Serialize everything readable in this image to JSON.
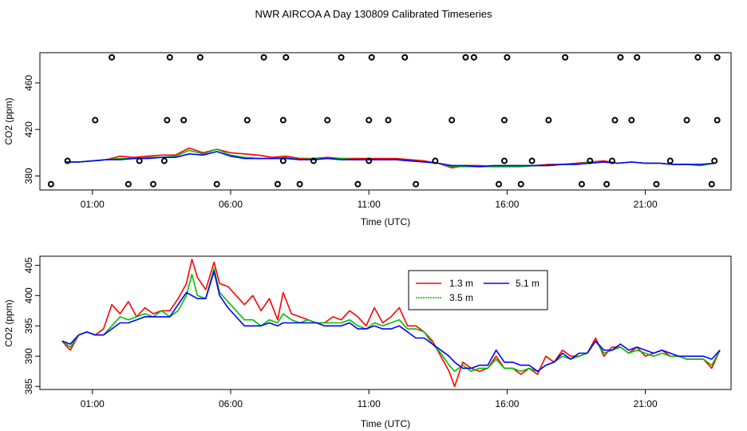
{
  "chart_data": [
    {
      "type": "line",
      "title": "NWR AIRCOA A  Day 130809  Calibrated Timeseries",
      "xlabel": "Time (UTC)",
      "ylabel": "CO2 (ppm)",
      "xlim": [
        -0.9,
        24.1
      ],
      "ylim": [
        368,
        486
      ],
      "x_ticks": [
        1,
        6,
        11,
        16,
        21
      ],
      "x_tick_labels": [
        "01:00",
        "06:00",
        "11:00",
        "16:00",
        "21:00"
      ],
      "y_ticks": [
        380,
        420,
        460
      ],
      "y_tick_labels": [
        "380",
        "420",
        "460"
      ],
      "series": [
        {
          "name": "1.3 m",
          "color": "#ff0000",
          "x": [
            0,
            0.5,
            1,
            1.5,
            2,
            2.5,
            3,
            3.5,
            4,
            4.5,
            5,
            5.5,
            6,
            6.5,
            7,
            7.5,
            8,
            8.5,
            9,
            9.5,
            10,
            10.5,
            11,
            11.5,
            12,
            12.5,
            13,
            13.5,
            14,
            14.5,
            15,
            15.5,
            16,
            16.5,
            17,
            17.5,
            18,
            18.5,
            19,
            19.5,
            20,
            20.5,
            21,
            21.5,
            22,
            22.5,
            23,
            23.5
          ],
          "y": [
            392,
            392,
            393,
            394,
            397,
            396,
            397,
            398,
            398,
            404,
            400,
            403,
            400,
            399,
            398,
            396,
            397,
            395,
            395,
            396,
            395,
            395,
            395,
            395,
            395,
            394,
            393,
            391,
            387,
            389,
            389,
            388,
            388,
            388,
            389,
            390,
            390,
            391,
            392,
            393,
            391,
            392,
            391,
            391,
            390,
            390,
            389,
            391
          ]
        },
        {
          "name": "3.5 m",
          "color": "#00c000",
          "x": [
            0,
            0.5,
            1,
            1.5,
            2,
            2.5,
            3,
            3.5,
            4,
            4.5,
            5,
            5.5,
            6,
            6.5,
            7,
            7.5,
            8,
            8.5,
            9,
            9.5,
            10,
            10.5,
            11,
            11.5,
            12,
            12.5,
            13,
            13.5,
            14,
            14.5,
            15,
            15.5,
            16,
            16.5,
            17,
            17.5,
            18,
            18.5,
            19,
            19.5,
            20,
            20.5,
            21,
            21.5,
            22,
            22.5,
            23,
            23.5
          ],
          "y": [
            392,
            392,
            393,
            394,
            395,
            395,
            396,
            396,
            397,
            402,
            399,
            403,
            398,
            396,
            395,
            395,
            396,
            394,
            395,
            395,
            395,
            394,
            394,
            394,
            394,
            393,
            392,
            391,
            388,
            388,
            388,
            388,
            388,
            388,
            389,
            389,
            390,
            390,
            392,
            392,
            391,
            392,
            391,
            391,
            390,
            390,
            389,
            391
          ]
        },
        {
          "name": "5.1 m",
          "color": "#0000ff",
          "x": [
            0,
            0.5,
            1,
            1.5,
            2,
            2.5,
            3,
            3.5,
            4,
            4.5,
            5,
            5.5,
            6,
            6.5,
            7,
            7.5,
            8,
            8.5,
            9,
            9.5,
            10,
            10.5,
            11,
            11.5,
            12,
            12.5,
            13,
            13.5,
            14,
            14.5,
            15,
            15.5,
            16,
            16.5,
            17,
            17.5,
            18,
            18.5,
            19,
            19.5,
            20,
            20.5,
            21,
            21.5,
            22,
            22.5,
            23,
            23.5
          ],
          "y": [
            392,
            392,
            393,
            394,
            394,
            395,
            395,
            396,
            396,
            399,
            398,
            401,
            397,
            395,
            395,
            395,
            395,
            394,
            394,
            395,
            394,
            394,
            394,
            394,
            394,
            393,
            392,
            391,
            389,
            389,
            388,
            389,
            389,
            389,
            389,
            389,
            390,
            390,
            391,
            392,
            391,
            392,
            391,
            391,
            390,
            390,
            390,
            391
          ]
        }
      ],
      "flask_markers": {
        "x": [
          -0.5,
          0.1,
          1.1,
          1.7,
          2.3,
          2.7,
          3.2,
          3.6,
          3.7,
          3.8,
          4.3,
          4.9,
          5.5,
          6.6,
          7.2,
          7.7,
          7.9,
          7.9,
          8.0,
          8.5,
          9.0,
          9.5,
          10.0,
          10.6,
          11.0,
          11.0,
          11.1,
          11.7,
          12.3,
          12.7,
          13.4,
          14.0,
          14.5,
          14.8,
          15.7,
          15.9,
          15.9,
          16.0,
          16.5,
          16.9,
          17.5,
          18.1,
          18.7,
          19.0,
          19.6,
          19.8,
          19.9,
          20.1,
          20.5,
          20.7,
          21.4,
          21.9,
          22.5,
          22.9,
          23.4,
          23.5,
          23.6,
          23.6
        ],
        "y": [
          373,
          393,
          428,
          482,
          373,
          393,
          373,
          393,
          428,
          482,
          428,
          482,
          373,
          428,
          482,
          373,
          393,
          428,
          482,
          373,
          393,
          428,
          482,
          373,
          393,
          428,
          482,
          428,
          482,
          373,
          393,
          428,
          482,
          482,
          373,
          393,
          428,
          482,
          373,
          393,
          428,
          482,
          373,
          393,
          373,
          393,
          428,
          482,
          428,
          482,
          373,
          393,
          428,
          482,
          373,
          393,
          428,
          482
        ]
      }
    },
    {
      "type": "line",
      "title": "",
      "xlabel": "Time (UTC)",
      "ylabel": "CO2 (ppm)",
      "xlim": [
        -0.9,
        24.1
      ],
      "ylim": [
        384.5,
        406.5
      ],
      "x_ticks": [
        1,
        6,
        11,
        16,
        21
      ],
      "x_tick_labels": [
        "01:00",
        "06:00",
        "11:00",
        "16:00",
        "21:00"
      ],
      "y_ticks": [
        385,
        390,
        395,
        400,
        405
      ],
      "y_tick_labels": [
        "385",
        "390",
        "395",
        "400",
        "405"
      ],
      "legend": {
        "position": "top-right",
        "entries": [
          "1.3 m",
          "5.1 m",
          "3.5 m"
        ]
      },
      "series": [
        {
          "name": "1.3 m",
          "color": "#ff0000",
          "x": [
            -0.1,
            0.2,
            0.5,
            0.8,
            1.1,
            1.4,
            1.7,
            2.0,
            2.3,
            2.6,
            2.9,
            3.2,
            3.5,
            3.8,
            4.1,
            4.4,
            4.6,
            4.8,
            5.1,
            5.4,
            5.6,
            5.9,
            6.2,
            6.5,
            6.8,
            7.1,
            7.4,
            7.7,
            7.9,
            8.2,
            8.5,
            8.8,
            9.1,
            9.4,
            9.7,
            10.0,
            10.3,
            10.6,
            10.9,
            11.2,
            11.5,
            11.8,
            12.1,
            12.4,
            12.7,
            13.0,
            13.3,
            13.6,
            13.9,
            14.1,
            14.4,
            14.7,
            15.0,
            15.3,
            15.6,
            15.9,
            16.2,
            16.5,
            16.8,
            17.1,
            17.4,
            17.7,
            18.0,
            18.3,
            18.6,
            18.9,
            19.2,
            19.5,
            19.8,
            20.1,
            20.4,
            20.7,
            21.0,
            21.3,
            21.6,
            21.9,
            22.2,
            22.5,
            22.8,
            23.1,
            23.4,
            23.7
          ],
          "y": [
            392.5,
            391,
            393.5,
            394,
            393.5,
            394.5,
            398.5,
            397,
            399,
            396.5,
            398,
            397,
            397.5,
            397.5,
            399.5,
            402,
            406,
            403,
            401,
            405.5,
            402,
            401.5,
            400,
            398.5,
            400,
            397.5,
            399.5,
            396,
            400.5,
            397,
            396.5,
            396,
            395.5,
            395.5,
            396.5,
            396,
            397.5,
            396.5,
            395,
            398,
            395.5,
            396.5,
            398,
            395,
            395,
            394,
            392.5,
            390,
            387.5,
            385,
            389,
            388,
            387.5,
            388,
            390,
            388,
            388,
            387,
            388,
            387,
            390,
            389,
            391,
            390,
            390,
            390.5,
            393,
            390,
            391.5,
            391.5,
            390.5,
            391.5,
            390,
            390.5,
            391,
            390,
            390,
            389.5,
            389.5,
            389.5,
            388,
            391
          ]
        },
        {
          "name": "3.5 m",
          "color": "#00c000",
          "x": [
            -0.1,
            0.2,
            0.5,
            0.8,
            1.1,
            1.4,
            1.7,
            2.0,
            2.3,
            2.6,
            2.9,
            3.2,
            3.5,
            3.8,
            4.1,
            4.4,
            4.6,
            4.8,
            5.1,
            5.4,
            5.6,
            5.9,
            6.2,
            6.5,
            6.8,
            7.1,
            7.4,
            7.7,
            7.9,
            8.2,
            8.5,
            8.8,
            9.1,
            9.4,
            9.7,
            10.0,
            10.3,
            10.6,
            10.9,
            11.2,
            11.5,
            11.8,
            12.1,
            12.4,
            12.7,
            13.0,
            13.3,
            13.6,
            13.9,
            14.1,
            14.4,
            14.7,
            15.0,
            15.3,
            15.6,
            15.9,
            16.2,
            16.5,
            16.8,
            17.1,
            17.4,
            17.7,
            18.0,
            18.3,
            18.6,
            18.9,
            19.2,
            19.5,
            19.8,
            20.1,
            20.4,
            20.7,
            21.0,
            21.3,
            21.6,
            21.9,
            22.2,
            22.5,
            22.8,
            23.1,
            23.4,
            23.7
          ],
          "y": [
            392.5,
            391.5,
            393.5,
            394,
            393.5,
            393.5,
            395,
            396.5,
            396,
            396.5,
            397,
            396.5,
            397.5,
            396.5,
            397.5,
            400,
            403.5,
            400,
            399.5,
            404.5,
            400.5,
            399,
            397.5,
            396,
            396,
            395,
            396,
            395.5,
            397,
            396,
            395.5,
            396,
            395.5,
            395.5,
            395.5,
            395.5,
            396,
            395,
            394.5,
            395.5,
            395,
            395.5,
            396,
            394.5,
            394.5,
            394,
            392,
            390.5,
            388.5,
            387.5,
            388.5,
            387.5,
            388,
            388,
            389.5,
            388,
            388,
            387.5,
            388,
            387.5,
            388.5,
            389,
            390,
            389.5,
            390,
            390.5,
            392.5,
            390.5,
            391,
            391.5,
            390.5,
            391,
            390.5,
            390,
            390.5,
            390,
            390,
            389.5,
            389.5,
            389.5,
            388.5,
            391
          ]
        },
        {
          "name": "5.1 m",
          "color": "#0000ff",
          "x": [
            -0.1,
            0.2,
            0.5,
            0.8,
            1.1,
            1.4,
            1.7,
            2.0,
            2.3,
            2.6,
            2.9,
            3.2,
            3.5,
            3.8,
            4.1,
            4.4,
            4.6,
            4.8,
            5.1,
            5.4,
            5.6,
            5.9,
            6.2,
            6.5,
            6.8,
            7.1,
            7.4,
            7.7,
            7.9,
            8.2,
            8.5,
            8.8,
            9.1,
            9.4,
            9.7,
            10.0,
            10.3,
            10.6,
            10.9,
            11.2,
            11.5,
            11.8,
            12.1,
            12.4,
            12.7,
            13.0,
            13.3,
            13.6,
            13.9,
            14.1,
            14.4,
            14.7,
            15.0,
            15.3,
            15.6,
            15.9,
            16.2,
            16.5,
            16.8,
            17.1,
            17.4,
            17.7,
            18.0,
            18.3,
            18.6,
            18.9,
            19.2,
            19.5,
            19.8,
            20.1,
            20.4,
            20.7,
            21.0,
            21.3,
            21.6,
            21.9,
            22.2,
            22.5,
            22.8,
            23.1,
            23.4,
            23.7
          ],
          "y": [
            392.5,
            392,
            393.5,
            394,
            393.5,
            393.5,
            394.5,
            395.5,
            395.5,
            396,
            396.5,
            396.5,
            396.5,
            396.5,
            398.5,
            400.5,
            400,
            399.5,
            399.5,
            404,
            400,
            398,
            396.5,
            395,
            395,
            395,
            395.5,
            395,
            395.5,
            395.5,
            395.5,
            395.5,
            395.5,
            395,
            395,
            395,
            395.5,
            394.5,
            394.5,
            395,
            394.5,
            394.5,
            395,
            394,
            393,
            393,
            392,
            391,
            390,
            389,
            388,
            388,
            388.5,
            388.5,
            391,
            389,
            389,
            388.5,
            388.5,
            387.5,
            388.5,
            389,
            390.5,
            389.5,
            390.5,
            390.5,
            392.5,
            391,
            391,
            392,
            391,
            391.5,
            391,
            390.5,
            391,
            390.5,
            390,
            390,
            390,
            390,
            389.5,
            391
          ]
        }
      ]
    }
  ]
}
